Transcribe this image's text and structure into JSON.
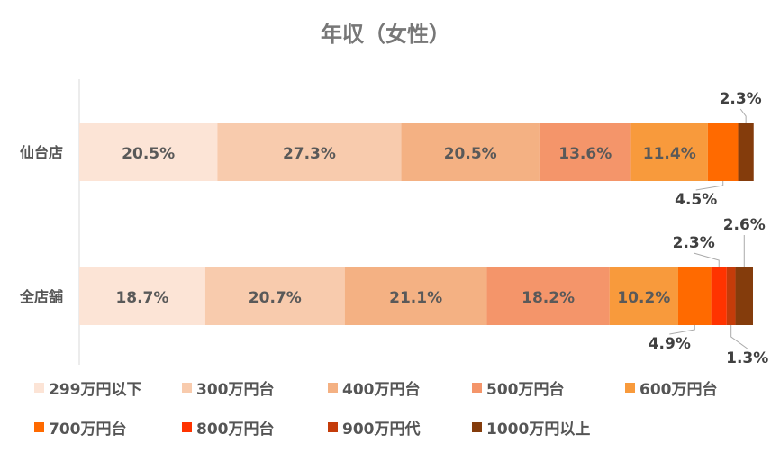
{
  "chart_data": {
    "type": "bar",
    "orientation": "horizontal",
    "stacked": true,
    "percent": true,
    "title": "年収（女性）",
    "categories": [
      "仙台店",
      "全店舗"
    ],
    "series": [
      {
        "name": "299万円以下",
        "color": "#fce4d6",
        "values": [
          20.5,
          18.7
        ]
      },
      {
        "name": "300万円台",
        "color": "#f8cbad",
        "values": [
          27.3,
          20.7
        ]
      },
      {
        "name": "400万円台",
        "color": "#f4b183",
        "values": [
          20.5,
          21.1
        ]
      },
      {
        "name": "500万円台",
        "color": "#f4956a",
        "values": [
          13.6,
          18.2
        ]
      },
      {
        "name": "600万円台",
        "color": "#f89a3c",
        "values": [
          11.4,
          10.2
        ]
      },
      {
        "name": "700万円台",
        "color": "#ff6a00",
        "values": [
          4.5,
          4.9
        ]
      },
      {
        "name": "800万円台",
        "color": "#ff3300",
        "values": [
          null,
          2.3
        ]
      },
      {
        "name": "900万円代",
        "color": "#c43c0a",
        "values": [
          null,
          1.3
        ]
      },
      {
        "name": "1000万円以上",
        "color": "#843c0c",
        "values": [
          2.3,
          2.6
        ]
      }
    ],
    "data_labels": [
      [
        "20.5%",
        "27.3%",
        "20.5%",
        "13.6%",
        "11.4%",
        "4.5%",
        "",
        "",
        "2.3%"
      ],
      [
        "18.7%",
        "20.7%",
        "21.1%",
        "18.2%",
        "10.2%",
        "4.9%",
        "2.3%",
        "1.3%",
        "2.6%"
      ]
    ],
    "xlim": [
      0,
      100
    ],
    "grid": false,
    "legend_position": "bottom"
  }
}
